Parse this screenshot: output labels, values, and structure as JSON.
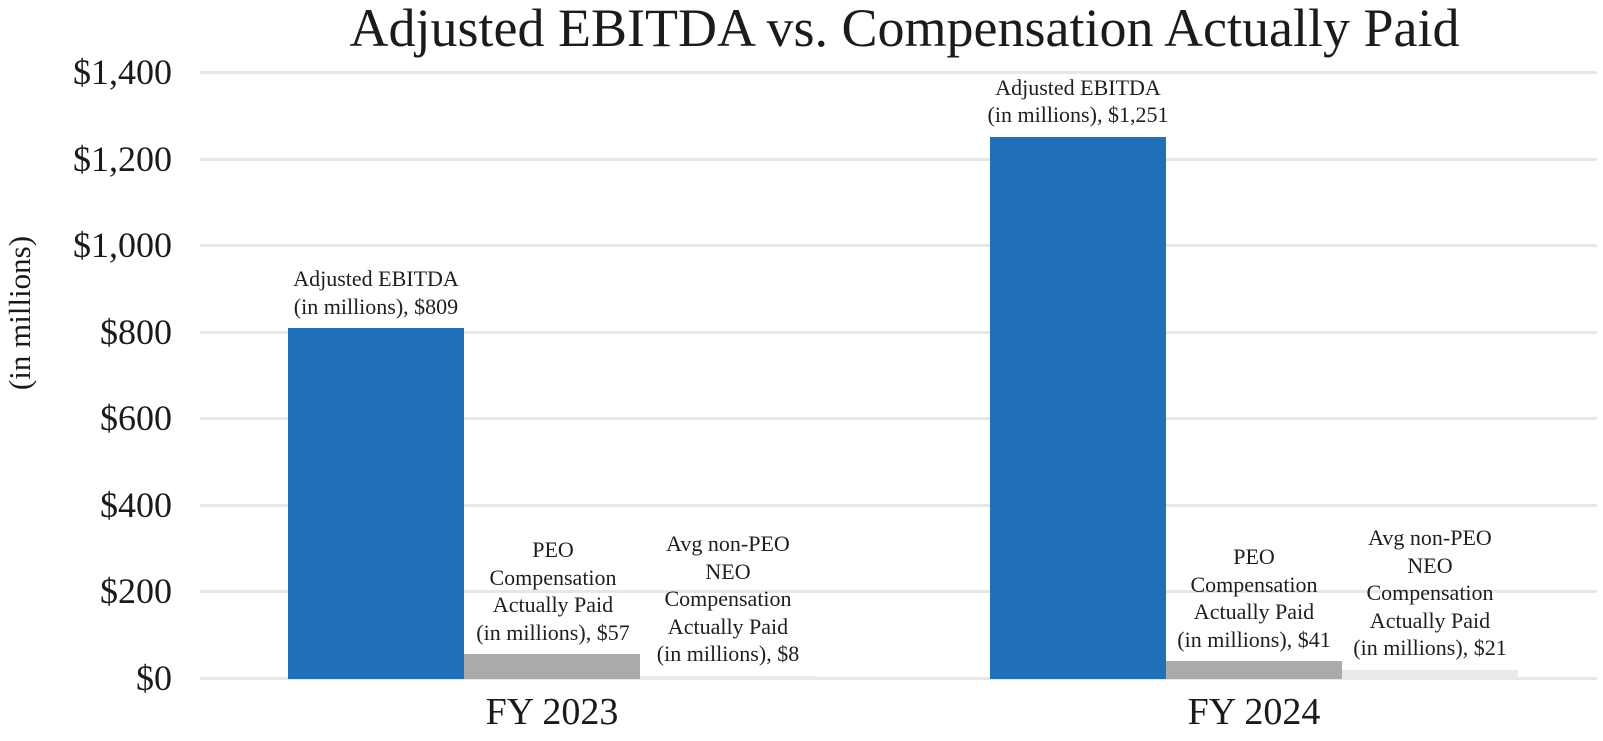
{
  "chart_data": {
    "type": "bar",
    "title": "Adjusted EBITDA vs. Compensation Actually Paid",
    "ylabel": "(in millions)",
    "xlabel": "",
    "ylim": [
      0,
      1400
    ],
    "ytick_step": 200,
    "yticks": [
      "$1,400",
      "$1,200",
      "$1,000",
      "$800",
      "$600",
      "$400",
      "$200",
      "$0"
    ],
    "grid": "horizontal gridlines on, light gray",
    "legend_position": "none (bars labeled directly above each bar)",
    "categories": [
      "FY 2023",
      "FY 2024"
    ],
    "series": [
      {
        "name": "Adjusted EBITDA (in millions)",
        "color": "#1f70b8",
        "values": [
          809,
          1251
        ]
      },
      {
        "name": "PEO Compensation Actually Paid (in millions)",
        "color": "#aaaaaa",
        "values": [
          57,
          41
        ]
      },
      {
        "name": "Avg non-PEO NEO Compensation Actually Paid (in millions)",
        "color": "#e8eaeb",
        "values": [
          8,
          21
        ]
      }
    ],
    "groups": [
      {
        "category": "FY 2023",
        "bars": [
          {
            "series": "adjusted-ebitda",
            "value": 809,
            "color": "#1f70b8",
            "label": "Adjusted EBITDA\n(in millions), $809"
          },
          {
            "series": "peo-compensation-actually-paid",
            "value": 57,
            "color": "#aaaaaa",
            "label": "PEO\nCompensation\nActually Paid\n(in millions), $57"
          },
          {
            "series": "avg-non-peo-neo-compensation-actually-paid",
            "value": 8,
            "color": "#e8eaeb",
            "label": "Avg non-PEO\nNEO\nCompensation\nActually Paid\n(in millions), $8"
          }
        ]
      },
      {
        "category": "FY 2024",
        "bars": [
          {
            "series": "adjusted-ebitda",
            "value": 1251,
            "color": "#1f70b8",
            "label": "Adjusted EBITDA\n(in millions), $1,251"
          },
          {
            "series": "peo-compensation-actually-paid",
            "value": 41,
            "color": "#aaaaaa",
            "label": "PEO\nCompensation\nActually Paid\n(in millions), $41"
          },
          {
            "series": "avg-non-peo-neo-compensation-actually-paid",
            "value": 21,
            "color": "#e8eaeb",
            "label": "Avg non-PEO\nNEO\nCompensation\nActually Paid\n(in millions), $21"
          }
        ]
      }
    ],
    "colors": {
      "adjusted_ebitda": "#1f70b8",
      "peo_cap": "#aaaaaa",
      "avg_non_peo_neo_cap": "#e8eaeb",
      "gridline": "#e7e7e7",
      "text": "#1a1a1a",
      "background": "#ffffff"
    }
  }
}
